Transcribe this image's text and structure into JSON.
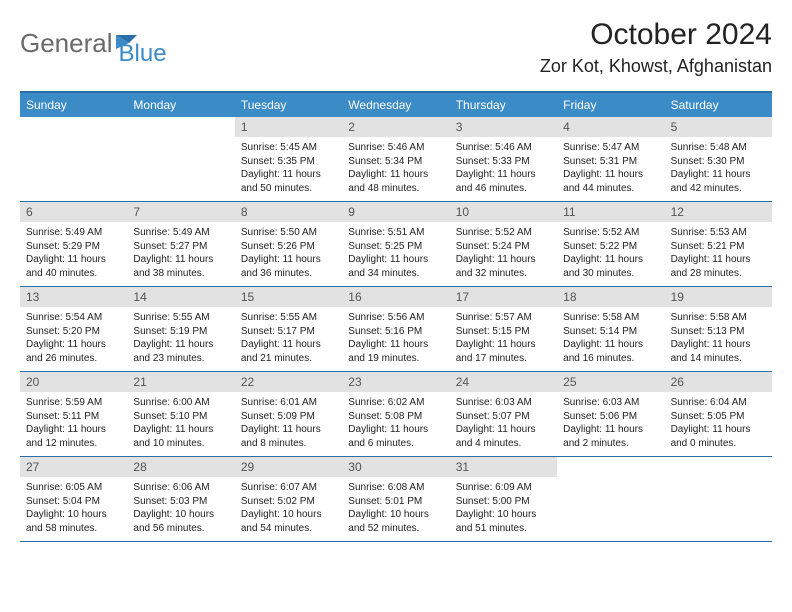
{
  "logo": {
    "part1": "General",
    "part2": "Blue"
  },
  "header": {
    "month_title": "October 2024",
    "location": "Zor Kot, Khowst, Afghanistan"
  },
  "colors": {
    "header_bg": "#3b8bc7",
    "header_text": "#ffffff",
    "border": "#2a6fa8",
    "daynum_bg": "#e2e2e2",
    "daynum_text": "#555555",
    "logo_gray": "#6a6a6a",
    "logo_blue": "#3b8bc7"
  },
  "calendar": {
    "type": "calendar-table",
    "day_names": [
      "Sunday",
      "Monday",
      "Tuesday",
      "Wednesday",
      "Thursday",
      "Friday",
      "Saturday"
    ],
    "weeks": [
      [
        null,
        null,
        {
          "day": "1",
          "sunrise": "Sunrise: 5:45 AM",
          "sunset": "Sunset: 5:35 PM",
          "daylight": "Daylight: 11 hours and 50 minutes."
        },
        {
          "day": "2",
          "sunrise": "Sunrise: 5:46 AM",
          "sunset": "Sunset: 5:34 PM",
          "daylight": "Daylight: 11 hours and 48 minutes."
        },
        {
          "day": "3",
          "sunrise": "Sunrise: 5:46 AM",
          "sunset": "Sunset: 5:33 PM",
          "daylight": "Daylight: 11 hours and 46 minutes."
        },
        {
          "day": "4",
          "sunrise": "Sunrise: 5:47 AM",
          "sunset": "Sunset: 5:31 PM",
          "daylight": "Daylight: 11 hours and 44 minutes."
        },
        {
          "day": "5",
          "sunrise": "Sunrise: 5:48 AM",
          "sunset": "Sunset: 5:30 PM",
          "daylight": "Daylight: 11 hours and 42 minutes."
        }
      ],
      [
        {
          "day": "6",
          "sunrise": "Sunrise: 5:49 AM",
          "sunset": "Sunset: 5:29 PM",
          "daylight": "Daylight: 11 hours and 40 minutes."
        },
        {
          "day": "7",
          "sunrise": "Sunrise: 5:49 AM",
          "sunset": "Sunset: 5:27 PM",
          "daylight": "Daylight: 11 hours and 38 minutes."
        },
        {
          "day": "8",
          "sunrise": "Sunrise: 5:50 AM",
          "sunset": "Sunset: 5:26 PM",
          "daylight": "Daylight: 11 hours and 36 minutes."
        },
        {
          "day": "9",
          "sunrise": "Sunrise: 5:51 AM",
          "sunset": "Sunset: 5:25 PM",
          "daylight": "Daylight: 11 hours and 34 minutes."
        },
        {
          "day": "10",
          "sunrise": "Sunrise: 5:52 AM",
          "sunset": "Sunset: 5:24 PM",
          "daylight": "Daylight: 11 hours and 32 minutes."
        },
        {
          "day": "11",
          "sunrise": "Sunrise: 5:52 AM",
          "sunset": "Sunset: 5:22 PM",
          "daylight": "Daylight: 11 hours and 30 minutes."
        },
        {
          "day": "12",
          "sunrise": "Sunrise: 5:53 AM",
          "sunset": "Sunset: 5:21 PM",
          "daylight": "Daylight: 11 hours and 28 minutes."
        }
      ],
      [
        {
          "day": "13",
          "sunrise": "Sunrise: 5:54 AM",
          "sunset": "Sunset: 5:20 PM",
          "daylight": "Daylight: 11 hours and 26 minutes."
        },
        {
          "day": "14",
          "sunrise": "Sunrise: 5:55 AM",
          "sunset": "Sunset: 5:19 PM",
          "daylight": "Daylight: 11 hours and 23 minutes."
        },
        {
          "day": "15",
          "sunrise": "Sunrise: 5:55 AM",
          "sunset": "Sunset: 5:17 PM",
          "daylight": "Daylight: 11 hours and 21 minutes."
        },
        {
          "day": "16",
          "sunrise": "Sunrise: 5:56 AM",
          "sunset": "Sunset: 5:16 PM",
          "daylight": "Daylight: 11 hours and 19 minutes."
        },
        {
          "day": "17",
          "sunrise": "Sunrise: 5:57 AM",
          "sunset": "Sunset: 5:15 PM",
          "daylight": "Daylight: 11 hours and 17 minutes."
        },
        {
          "day": "18",
          "sunrise": "Sunrise: 5:58 AM",
          "sunset": "Sunset: 5:14 PM",
          "daylight": "Daylight: 11 hours and 16 minutes."
        },
        {
          "day": "19",
          "sunrise": "Sunrise: 5:58 AM",
          "sunset": "Sunset: 5:13 PM",
          "daylight": "Daylight: 11 hours and 14 minutes."
        }
      ],
      [
        {
          "day": "20",
          "sunrise": "Sunrise: 5:59 AM",
          "sunset": "Sunset: 5:11 PM",
          "daylight": "Daylight: 11 hours and 12 minutes."
        },
        {
          "day": "21",
          "sunrise": "Sunrise: 6:00 AM",
          "sunset": "Sunset: 5:10 PM",
          "daylight": "Daylight: 11 hours and 10 minutes."
        },
        {
          "day": "22",
          "sunrise": "Sunrise: 6:01 AM",
          "sunset": "Sunset: 5:09 PM",
          "daylight": "Daylight: 11 hours and 8 minutes."
        },
        {
          "day": "23",
          "sunrise": "Sunrise: 6:02 AM",
          "sunset": "Sunset: 5:08 PM",
          "daylight": "Daylight: 11 hours and 6 minutes."
        },
        {
          "day": "24",
          "sunrise": "Sunrise: 6:03 AM",
          "sunset": "Sunset: 5:07 PM",
          "daylight": "Daylight: 11 hours and 4 minutes."
        },
        {
          "day": "25",
          "sunrise": "Sunrise: 6:03 AM",
          "sunset": "Sunset: 5:06 PM",
          "daylight": "Daylight: 11 hours and 2 minutes."
        },
        {
          "day": "26",
          "sunrise": "Sunrise: 6:04 AM",
          "sunset": "Sunset: 5:05 PM",
          "daylight": "Daylight: 11 hours and 0 minutes."
        }
      ],
      [
        {
          "day": "27",
          "sunrise": "Sunrise: 6:05 AM",
          "sunset": "Sunset: 5:04 PM",
          "daylight": "Daylight: 10 hours and 58 minutes."
        },
        {
          "day": "28",
          "sunrise": "Sunrise: 6:06 AM",
          "sunset": "Sunset: 5:03 PM",
          "daylight": "Daylight: 10 hours and 56 minutes."
        },
        {
          "day": "29",
          "sunrise": "Sunrise: 6:07 AM",
          "sunset": "Sunset: 5:02 PM",
          "daylight": "Daylight: 10 hours and 54 minutes."
        },
        {
          "day": "30",
          "sunrise": "Sunrise: 6:08 AM",
          "sunset": "Sunset: 5:01 PM",
          "daylight": "Daylight: 10 hours and 52 minutes."
        },
        {
          "day": "31",
          "sunrise": "Sunrise: 6:09 AM",
          "sunset": "Sunset: 5:00 PM",
          "daylight": "Daylight: 10 hours and 51 minutes."
        },
        null,
        null
      ]
    ]
  }
}
